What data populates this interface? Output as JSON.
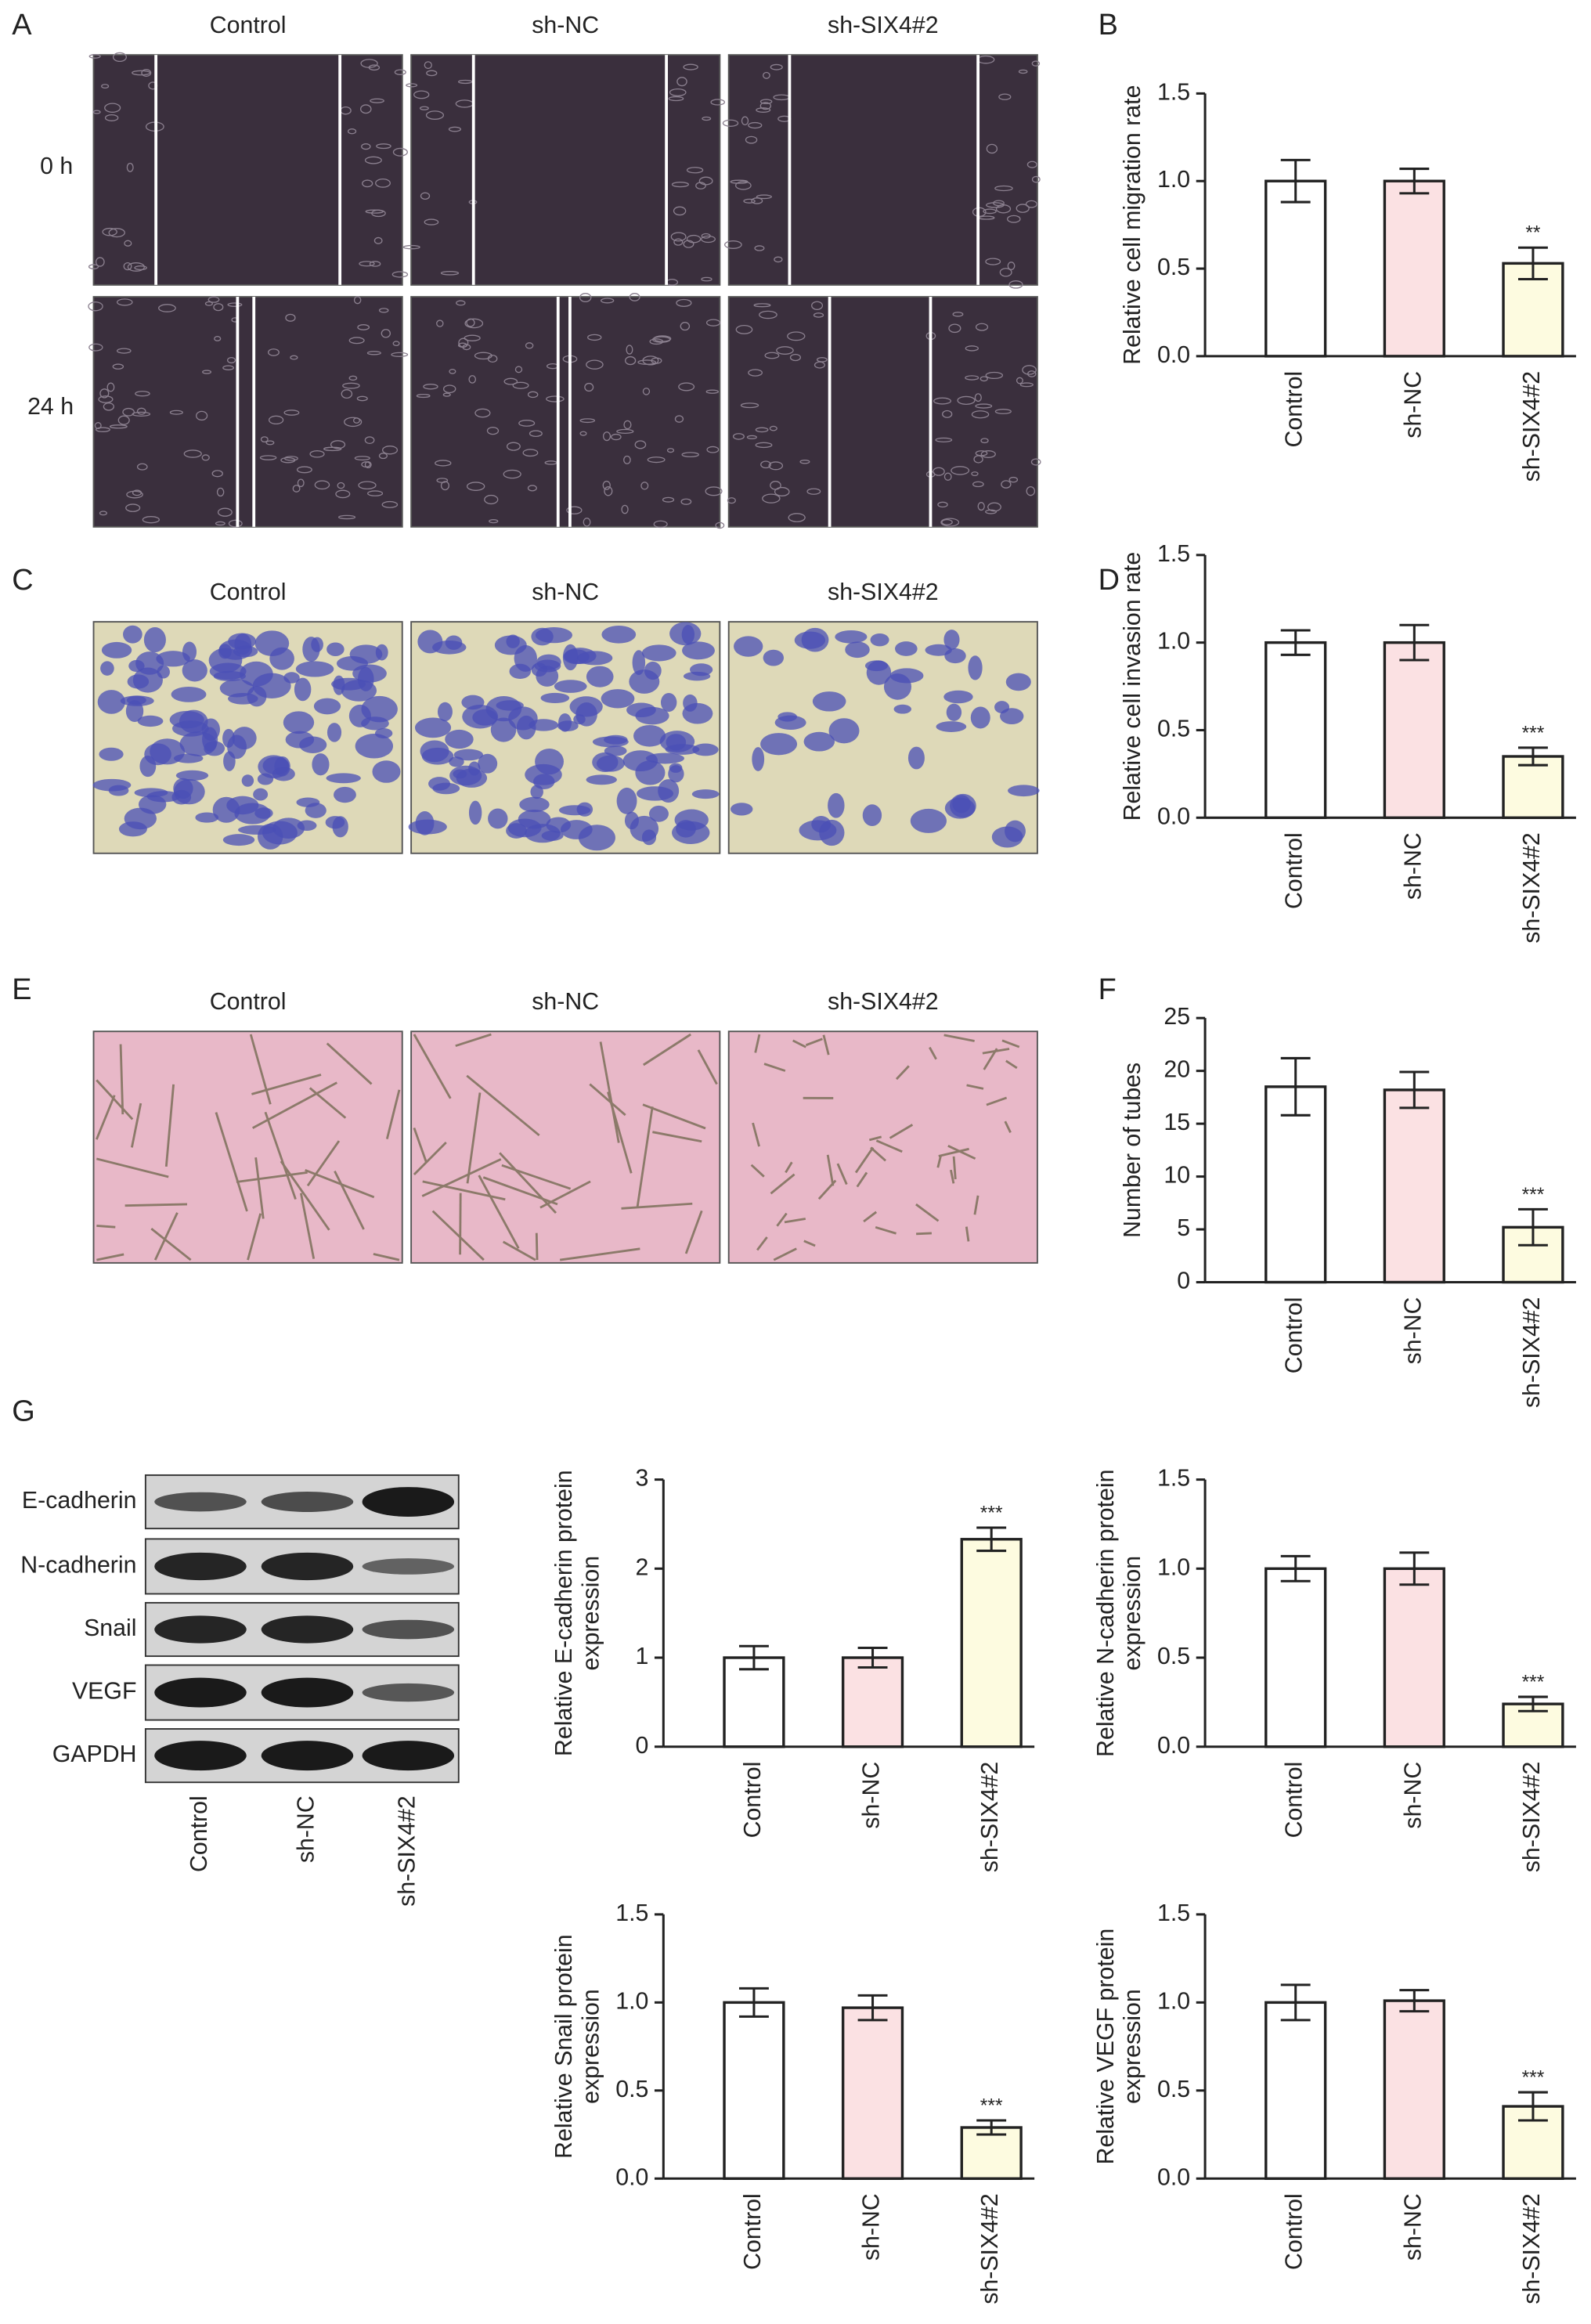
{
  "figure": {
    "panel_labels": [
      "A",
      "B",
      "C",
      "D",
      "E",
      "F",
      "G"
    ],
    "panel_A": {
      "columns": [
        "Control",
        "sh-NC",
        "sh-SIX4#2"
      ],
      "rows": [
        "0 h",
        "24 h"
      ]
    },
    "panel_C": {
      "columns": [
        "Control",
        "sh-NC",
        "sh-SIX4#2"
      ]
    },
    "panel_E": {
      "columns": [
        "Control",
        "sh-NC",
        "sh-SIX4#2"
      ]
    },
    "panel_G_blot": {
      "proteins": [
        "E-cadherin",
        "N-cadherin",
        "Snail",
        "VEGF",
        "GAPDH"
      ],
      "lanes": [
        "Control",
        "sh-NC",
        "sh-SIX4#2"
      ]
    }
  },
  "chart_data": [
    {
      "type": "bar",
      "ylabel": [
        "Relative cell migration rate"
      ],
      "categories": [
        "Control",
        "sh-NC",
        "sh-SIX4#2"
      ],
      "values": [
        1.0,
        1.0,
        0.53
      ],
      "errors": [
        0.12,
        0.07,
        0.09
      ],
      "significance": [
        null,
        null,
        "**"
      ],
      "colors": [
        "#ffffff",
        "#fbe1e3",
        "#fdfbe0"
      ],
      "ylim": [
        0,
        1.5
      ],
      "yticks": [
        {
          "value": 0,
          "label": "0.0"
        },
        {
          "value": 0.5,
          "label": "0.5"
        },
        {
          "value": 1,
          "label": "1.0"
        },
        {
          "value": 1.5,
          "label": "1.5"
        }
      ]
    },
    {
      "type": "bar",
      "ylabel": [
        "Relative cell invasion rate"
      ],
      "categories": [
        "Control",
        "sh-NC",
        "sh-SIX4#2"
      ],
      "values": [
        1.0,
        1.0,
        0.35
      ],
      "errors": [
        0.07,
        0.1,
        0.05
      ],
      "significance": [
        null,
        null,
        "***"
      ],
      "colors": [
        "#ffffff",
        "#fbe1e3",
        "#fdfbe0"
      ],
      "ylim": [
        0,
        1.5
      ],
      "yticks": [
        {
          "value": 0,
          "label": "0.0"
        },
        {
          "value": 0.5,
          "label": "0.5"
        },
        {
          "value": 1,
          "label": "1.0"
        },
        {
          "value": 1.5,
          "label": "1.5"
        }
      ]
    },
    {
      "type": "bar",
      "ylabel": [
        "Number of tubes"
      ],
      "categories": [
        "Control",
        "sh-NC",
        "sh-SIX4#2"
      ],
      "values": [
        18.5,
        18.2,
        5.2
      ],
      "errors": [
        2.7,
        1.7,
        1.7
      ],
      "significance": [
        null,
        null,
        "***"
      ],
      "colors": [
        "#ffffff",
        "#fbe1e3",
        "#fdfbe0"
      ],
      "ylim": [
        0,
        25
      ],
      "yticks": [
        0,
        5,
        10,
        15,
        20,
        25
      ]
    },
    {
      "type": "bar",
      "ylabel": [
        "Relative E-cadherin protein",
        "expression"
      ],
      "categories": [
        "Control",
        "sh-NC",
        "sh-SIX4#2"
      ],
      "values": [
        1.0,
        1.0,
        2.33
      ],
      "errors": [
        0.13,
        0.11,
        0.13
      ],
      "significance": [
        null,
        null,
        "***"
      ],
      "colors": [
        "#ffffff",
        "#fbe1e3",
        "#fdfbe0"
      ],
      "ylim": [
        0,
        3
      ],
      "yticks": [
        0,
        1,
        2,
        3
      ]
    },
    {
      "type": "bar",
      "ylabel": [
        "Relative N-cadherin protein",
        "expression"
      ],
      "categories": [
        "Control",
        "sh-NC",
        "sh-SIX4#2"
      ],
      "values": [
        1.0,
        1.0,
        0.24
      ],
      "errors": [
        0.07,
        0.09,
        0.04
      ],
      "significance": [
        null,
        null,
        "***"
      ],
      "colors": [
        "#ffffff",
        "#fbe1e3",
        "#fdfbe0"
      ],
      "ylim": [
        0,
        1.5
      ],
      "yticks": [
        {
          "value": 0,
          "label": "0.0"
        },
        {
          "value": 0.5,
          "label": "0.5"
        },
        {
          "value": 1,
          "label": "1.0"
        },
        {
          "value": 1.5,
          "label": "1.5"
        }
      ]
    },
    {
      "type": "bar",
      "ylabel": [
        "Relative Snail protein",
        "expression"
      ],
      "categories": [
        "Control",
        "sh-NC",
        "sh-SIX4#2"
      ],
      "values": [
        1.0,
        0.97,
        0.29
      ],
      "errors": [
        0.08,
        0.07,
        0.04
      ],
      "significance": [
        null,
        null,
        "***"
      ],
      "colors": [
        "#ffffff",
        "#fbe1e3",
        "#fdfbe0"
      ],
      "ylim": [
        0,
        1.5
      ],
      "yticks": [
        {
          "value": 0,
          "label": "0.0"
        },
        {
          "value": 0.5,
          "label": "0.5"
        },
        {
          "value": 1,
          "label": "1.0"
        },
        {
          "value": 1.5,
          "label": "1.5"
        }
      ]
    },
    {
      "type": "bar",
      "ylabel": [
        "Relative VEGF protein",
        "expression"
      ],
      "categories": [
        "Control",
        "sh-NC",
        "sh-SIX4#2"
      ],
      "values": [
        1.0,
        1.01,
        0.41
      ],
      "errors": [
        0.1,
        0.06,
        0.08
      ],
      "significance": [
        null,
        null,
        "***"
      ],
      "colors": [
        "#ffffff",
        "#fbe1e3",
        "#fdfbe0"
      ],
      "ylim": [
        0,
        1.5
      ],
      "yticks": [
        {
          "value": 0,
          "label": "0.0"
        },
        {
          "value": 0.5,
          "label": "0.5"
        },
        {
          "value": 1,
          "label": "1.0"
        },
        {
          "value": 1.5,
          "label": "1.5"
        }
      ]
    }
  ]
}
